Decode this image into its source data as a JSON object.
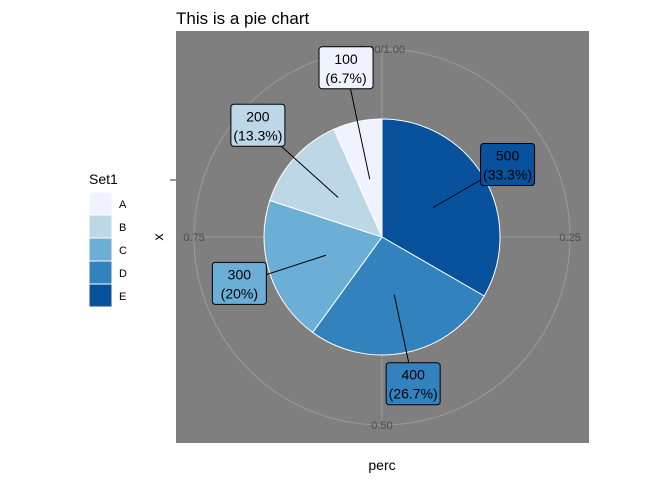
{
  "chart_data": {
    "type": "pie",
    "title": "This is a pie chart",
    "xlabel": "perc",
    "ylabel": "x",
    "legend": {
      "title": "Set1",
      "placement": "left",
      "entries": [
        "A",
        "B",
        "C",
        "D",
        "E"
      ]
    },
    "categories": [
      "A",
      "B",
      "C",
      "D",
      "E"
    ],
    "values": [
      100,
      200,
      300,
      400,
      500
    ],
    "data_labels": [
      [
        "100",
        "(6.7%)"
      ],
      [
        "200",
        "(13.3%)"
      ],
      [
        "300",
        "(20%)"
      ],
      [
        "400",
        "(26.7%)"
      ],
      [
        "500",
        "(33.3%)"
      ]
    ],
    "slice_order": [
      "E",
      "D",
      "C",
      "B",
      "A"
    ],
    "angular_ticks": [
      {
        "value": 0,
        "label": "0.00/1.00"
      },
      {
        "value": 0.25,
        "label": "0.25"
      },
      {
        "value": 0.5,
        "label": "0.50"
      },
      {
        "value": 0.75,
        "label": "0.75"
      }
    ],
    "colors": {
      "A": "#eff3ff",
      "B": "#bdd7e7",
      "C": "#6baed6",
      "D": "#3182bd",
      "E": "#08519c"
    },
    "panel_background": "#7f7f7f",
    "grid": true
  }
}
